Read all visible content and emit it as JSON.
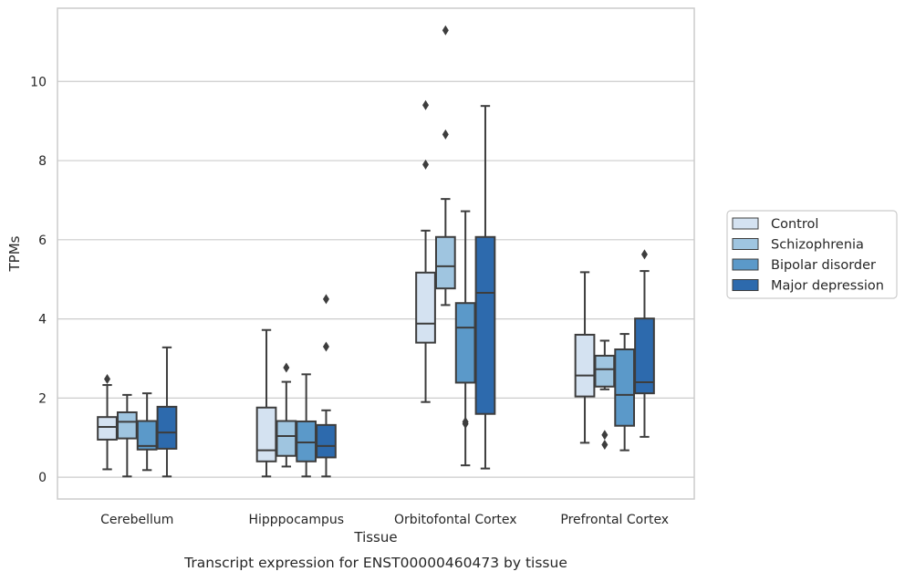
{
  "chart_data": {
    "type": "box",
    "title": "",
    "caption": "Transcript expression for ENST00000460473 by tissue",
    "xlabel": "Tissue",
    "ylabel": "TPMs",
    "ylim": [
      -0.55,
      11.85
    ],
    "yticks": [
      "0",
      "2",
      "4",
      "6",
      "8",
      "10"
    ],
    "grid": "horizontal",
    "legend_position": "right",
    "categories": [
      "Cerebellum",
      "Hipppocampus",
      "Orbitofontal Cortex",
      "Prefrontal Cortex"
    ],
    "series": [
      {
        "name": "Control",
        "color": "#d4e2f1",
        "boxes": [
          {
            "whislo": 0.2,
            "q1": 0.95,
            "med": 1.27,
            "q3": 1.52,
            "whishi": 2.33,
            "fliers": [
              2.48
            ]
          },
          {
            "whislo": 0.02,
            "q1": 0.4,
            "med": 0.68,
            "q3": 1.76,
            "whishi": 3.72,
            "fliers": []
          },
          {
            "whislo": 1.9,
            "q1": 3.4,
            "med": 3.88,
            "q3": 5.17,
            "whishi": 6.23,
            "fliers": [
              7.9,
              9.4
            ]
          },
          {
            "whislo": 0.87,
            "q1": 2.04,
            "med": 2.57,
            "q3": 3.6,
            "whishi": 5.18,
            "fliers": []
          }
        ]
      },
      {
        "name": "Schizophrenia",
        "color": "#9fc5e0",
        "boxes": [
          {
            "whislo": 0.02,
            "q1": 0.98,
            "med": 1.4,
            "q3": 1.64,
            "whishi": 2.08,
            "fliers": []
          },
          {
            "whislo": 0.27,
            "q1": 0.54,
            "med": 1.04,
            "q3": 1.42,
            "whishi": 2.41,
            "fliers": [
              2.77
            ]
          },
          {
            "whislo": 4.35,
            "q1": 4.77,
            "med": 5.33,
            "q3": 6.07,
            "whishi": 7.03,
            "fliers": [
              8.66,
              11.29
            ]
          },
          {
            "whislo": 2.22,
            "q1": 2.29,
            "med": 2.73,
            "q3": 3.07,
            "whishi": 3.45,
            "fliers": [
              1.07,
              0.82
            ]
          }
        ]
      },
      {
        "name": "Bipolar disorder",
        "color": "#5b99c9",
        "boxes": [
          {
            "whislo": 0.18,
            "q1": 0.7,
            "med": 0.79,
            "q3": 1.42,
            "whishi": 2.12,
            "fliers": []
          },
          {
            "whislo": 0.02,
            "q1": 0.4,
            "med": 0.88,
            "q3": 1.41,
            "whishi": 2.6,
            "fliers": []
          },
          {
            "whislo": 0.3,
            "q1": 2.39,
            "med": 3.78,
            "q3": 4.4,
            "whishi": 6.72,
            "fliers": [
              1.35,
              1.4
            ]
          },
          {
            "whislo": 0.68,
            "q1": 1.3,
            "med": 2.08,
            "q3": 3.23,
            "whishi": 3.62,
            "fliers": []
          }
        ]
      },
      {
        "name": "Major depression",
        "color": "#2d6aad",
        "boxes": [
          {
            "whislo": 0.02,
            "q1": 0.72,
            "med": 1.13,
            "q3": 1.78,
            "whishi": 3.28,
            "fliers": []
          },
          {
            "whislo": 0.02,
            "q1": 0.5,
            "med": 0.79,
            "q3": 1.32,
            "whishi": 1.69,
            "fliers": [
              3.3,
              4.5
            ]
          },
          {
            "whislo": 0.22,
            "q1": 1.6,
            "med": 4.66,
            "q3": 6.07,
            "whishi": 9.38,
            "fliers": []
          },
          {
            "whislo": 1.02,
            "q1": 2.12,
            "med": 2.4,
            "q3": 4.01,
            "whishi": 5.21,
            "fliers": [
              5.63
            ]
          }
        ]
      }
    ]
  }
}
